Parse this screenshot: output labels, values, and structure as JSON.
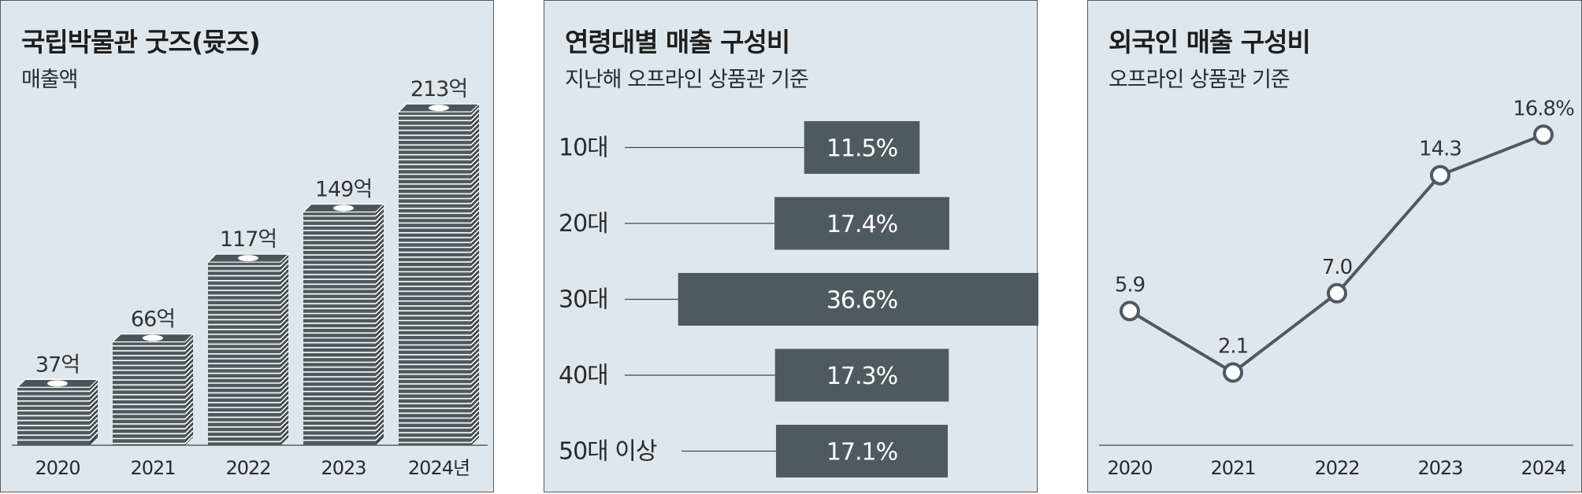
{
  "chart_data": [
    {
      "type": "bar",
      "title": "국립박물관 굿즈(뮷즈)",
      "subtitle": "매출액",
      "categories": [
        "2020",
        "2021",
        "2022",
        "2023",
        "2024년"
      ],
      "values": [
        37,
        66,
        117,
        149,
        213
      ],
      "value_labels": [
        "37억",
        "66억",
        "117억",
        "149억",
        "213억"
      ],
      "unit": "억",
      "style": "stacked banknote bundles",
      "colors": {
        "bar": "#4f5a60",
        "stripe": "#ffffff"
      }
    },
    {
      "type": "bar",
      "orientation": "horizontal",
      "title": "연령대별 매출 구성비",
      "subtitle": "지난해 오프라인 상품관 기준",
      "categories": [
        "10대",
        "20대",
        "30대",
        "40대",
        "50대 이상"
      ],
      "values": [
        11.5,
        17.4,
        36.6,
        17.3,
        17.1
      ],
      "value_labels": [
        "11.5%",
        "17.4%",
        "36.6%",
        "17.3%",
        "17.1%"
      ],
      "unit": "%",
      "colors": {
        "bar": "#4f5a60",
        "label": "#ffffff"
      }
    },
    {
      "type": "line",
      "title": "외국인 매출 구성비",
      "subtitle": "오프라인 상품관 기준",
      "x": [
        "2020",
        "2021",
        "2022",
        "2023",
        "2024"
      ],
      "values": [
        5.9,
        2.1,
        7.0,
        14.3,
        16.8
      ],
      "value_labels": [
        "5.9",
        "2.1",
        "7.0",
        "14.3",
        "16.8%"
      ],
      "unit": "%",
      "colors": {
        "line": "#4f5a60",
        "marker_fill": "#ffffff"
      }
    }
  ]
}
